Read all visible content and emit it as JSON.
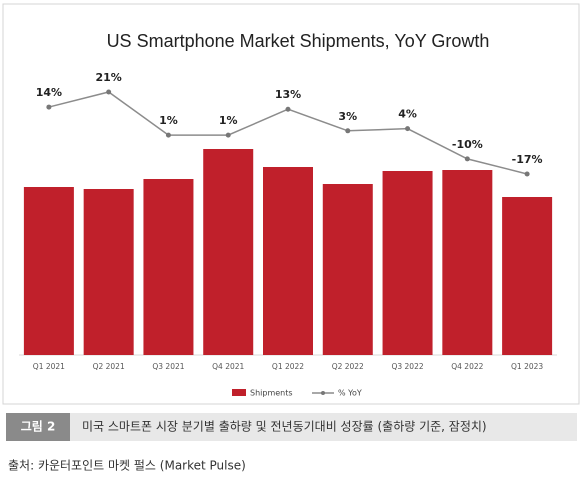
{
  "chart_data": {
    "type": "bar",
    "title": "US Smartphone Market Shipments, YoY Growth",
    "categories": [
      "Q1 2021",
      "Q2 2021",
      "Q3 2021",
      "Q4 2021",
      "Q1 2022",
      "Q2 2022",
      "Q3 2022",
      "Q4 2022",
      "Q1 2023"
    ],
    "ylim": [
      0,
      240
    ],
    "y2lim": [
      -40,
      60
    ],
    "series": [
      {
        "name": "Shipments",
        "type": "bar",
        "color": "#c0202b",
        "values": [
          168,
          166,
          176,
          206,
          188,
          171,
          184,
          185,
          158
        ]
      },
      {
        "name": "% YoY",
        "type": "line",
        "axis": "y2",
        "color": "#8c8c8c",
        "values": [
          14,
          21,
          1,
          1,
          13,
          3,
          4,
          -10,
          -17
        ],
        "value_labels": [
          "14%",
          "21%",
          "1%",
          "1%",
          "13%",
          "3%",
          "4%",
          "-10%",
          "-17%"
        ]
      }
    ]
  },
  "caption": {
    "label": "그림 2",
    "text": "미국 스마트폰 시장 분기별 출하량 및 전년동기대비 성장률 (출하량 기준, 잠정치)"
  },
  "source": "출처: 카운터포인트 마켓 펄스 (Market Pulse)"
}
